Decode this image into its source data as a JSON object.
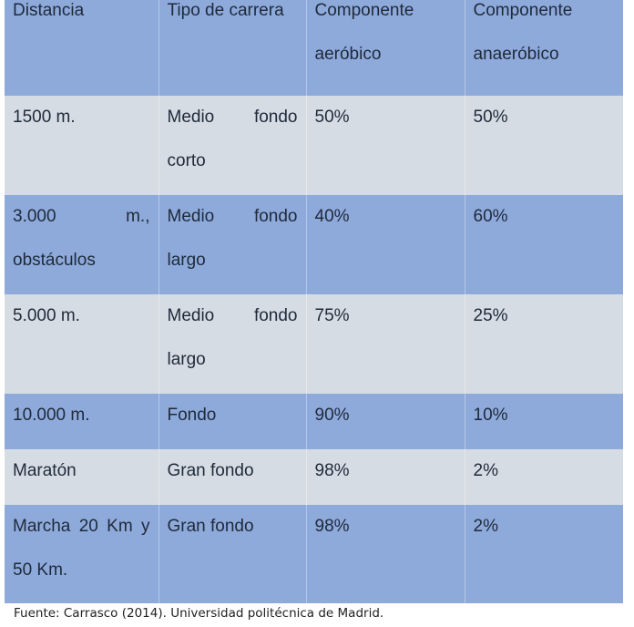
{
  "table": {
    "headers": [
      "Distancia",
      "Tipo de carrera",
      "Componente aeróbico",
      "Componente anaeróbico"
    ],
    "rows": [
      {
        "distancia": "1500 m.",
        "tipo": "Medio fondo corto",
        "aerobico": "50%",
        "anaerobico": "50%"
      },
      {
        "distancia": "3.000 m., obstáculos",
        "tipo": "Medio fondo largo",
        "aerobico": "40%",
        "anaerobico": "60%"
      },
      {
        "distancia": "5.000 m.",
        "tipo": "Medio fondo largo",
        "aerobico": "75%",
        "anaerobico": "25%"
      },
      {
        "distancia": "10.000 m.",
        "tipo": "Fondo",
        "aerobico": "90%",
        "anaerobico": "10%"
      },
      {
        "distancia": "Maratón",
        "tipo": "Gran fondo",
        "aerobico": "98%",
        "anaerobico": "2%"
      },
      {
        "distancia": "Marcha 20 Km y 50 Km.",
        "tipo": "Gran fondo",
        "aerobico": "98%",
        "anaerobico": "2%"
      }
    ]
  },
  "source": "Fuente: Carrasco (2014). Universidad politécnica de Madrid.",
  "colors": {
    "blue_row": "#8eaadb",
    "gray_row": "#d6dce4",
    "text": "#1f2a3a"
  }
}
